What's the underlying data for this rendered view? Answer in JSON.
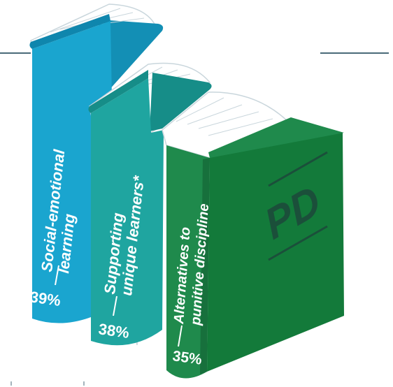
{
  "chart_data": {
    "type": "bar",
    "categories": [
      "Social-emotional learning",
      "Supporting unique learners*",
      "Alternatives to punitive discipline"
    ],
    "values": [
      39,
      38,
      35
    ],
    "unit": "%",
    "title": "",
    "xlabel": "",
    "ylabel": ""
  },
  "books": [
    {
      "line1": "Social-emotional",
      "line2": "learning",
      "percent": "39%",
      "value": 39,
      "spine_color": "#1aa5cf",
      "dark_color": "#128fb5",
      "pages_color": "#ffffff"
    },
    {
      "line1": "Supporting",
      "line2": "unique learners*",
      "percent": "38%",
      "value": 38,
      "spine_color": "#1fa5a0",
      "dark_color": "#168d88",
      "pages_color": "#ffffff"
    },
    {
      "line1": "Alternatives to",
      "line2": "punitive discipline",
      "percent": "35%",
      "value": 35,
      "spine_color": "#1f8a4c",
      "dark_color": "#17703c",
      "cover_color": "#137a3a",
      "pages_color": "#ffffff",
      "cover_text": "PD",
      "cover_text_color": "#1b4f3a"
    }
  ],
  "colors": {
    "accent_line": "#4a6a78"
  }
}
